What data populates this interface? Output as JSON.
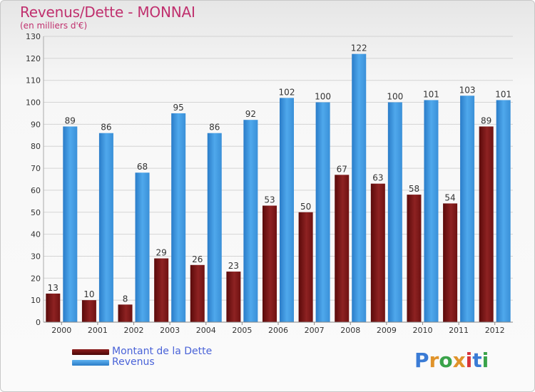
{
  "title": "Revenus/Dette - MONNAI",
  "subtitle": "(en milliers d'€)",
  "legend": [
    {
      "label": "Montant de la Dette",
      "color": "#7a1010"
    },
    {
      "label": "Revenus",
      "color": "#3a93dd"
    }
  ],
  "logo": {
    "text": "Proxiti",
    "colors": [
      "#3a7bd5",
      "#e0932a",
      "#3aa34a",
      "#e0932a",
      "#d8343a",
      "#3a7bd5",
      "#3aa34a"
    ]
  },
  "chart_data": {
    "type": "bar",
    "categories": [
      "2000",
      "2001",
      "2002",
      "2003",
      "2004",
      "2005",
      "2006",
      "2007",
      "2008",
      "2009",
      "2010",
      "2011",
      "2012"
    ],
    "series": [
      {
        "name": "Montant de la Dette",
        "color": "#8b1a1a",
        "values": [
          13,
          10,
          8,
          29,
          26,
          23,
          53,
          50,
          67,
          63,
          58,
          54,
          89
        ]
      },
      {
        "name": "Revenus",
        "color": "#3d9be0",
        "values": [
          89,
          86,
          68,
          95,
          86,
          92,
          102,
          100,
          122,
          100,
          101,
          103,
          101
        ]
      }
    ],
    "ylim": [
      0,
      130
    ],
    "yticks": [
      0,
      10,
      20,
      30,
      40,
      50,
      60,
      70,
      80,
      90,
      100,
      110,
      120,
      130
    ],
    "grid": true,
    "legend_position": "bottom-left"
  }
}
